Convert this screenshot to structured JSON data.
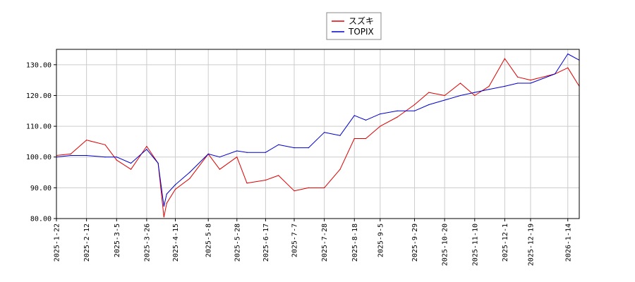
{
  "chart_data": {
    "type": "line",
    "title": "",
    "xlabel": "",
    "ylabel": "",
    "ylim": [
      80,
      135
    ],
    "grid": true,
    "legend_position": "top-center",
    "y_ticks": [
      "80.00",
      "90.00",
      "100.00",
      "110.00",
      "120.00",
      "130.00"
    ],
    "x_ticks": [
      "2025-1-22",
      "2025-2-12",
      "2025-3-5",
      "2025-3-26",
      "2025-4-15",
      "2025-5-8",
      "2025-5-28",
      "2025-6-17",
      "2025-7-7",
      "2025-7-28",
      "2025-8-18",
      "2025-9-5",
      "2025-9-29",
      "2025-10-20",
      "2025-11-10",
      "2025-12-1",
      "2025-12-19",
      "2026-1-14"
    ],
    "x": [
      "2025-1-22",
      "2025-2-1",
      "2025-2-12",
      "2025-2-25",
      "2025-3-5",
      "2025-3-15",
      "2025-3-26",
      "2025-4-3",
      "2025-4-7",
      "2025-4-9",
      "2025-4-15",
      "2025-4-25",
      "2025-5-8",
      "2025-5-16",
      "2025-5-28",
      "2025-6-4",
      "2025-6-17",
      "2025-6-26",
      "2025-7-7",
      "2025-7-17",
      "2025-7-28",
      "2025-8-8",
      "2025-8-18",
      "2025-8-26",
      "2025-9-5",
      "2025-9-17",
      "2025-9-29",
      "2025-10-9",
      "2025-10-20",
      "2025-10-31",
      "2025-11-10",
      "2025-11-20",
      "2025-12-1",
      "2025-12-10",
      "2025-12-19",
      "2026-1-5",
      "2026-1-14",
      "2026-1-22"
    ],
    "series": [
      {
        "name": "スズキ",
        "color": "#dd0000",
        "values": [
          100.5,
          101,
          105.5,
          104,
          99,
          96,
          103.5,
          98,
          80.5,
          85,
          89.5,
          93,
          101,
          96,
          100,
          91.5,
          92.5,
          94,
          89,
          90,
          90,
          96,
          106,
          106,
          110,
          113,
          117,
          121,
          120,
          124,
          120,
          123,
          132,
          126,
          125,
          127,
          129,
          123
        ]
      },
      {
        "name": "TOPIX",
        "color": "#0000cc",
        "values": [
          100,
          100.5,
          100.5,
          100,
          100,
          98,
          102.5,
          98,
          84,
          88,
          91,
          95,
          101,
          100,
          102,
          101.5,
          101.5,
          104,
          103,
          103,
          108,
          107,
          113.5,
          112,
          114,
          115,
          115,
          117,
          118.5,
          120,
          121,
          122,
          123,
          124,
          124,
          127,
          133.5,
          131.5
        ]
      }
    ]
  }
}
